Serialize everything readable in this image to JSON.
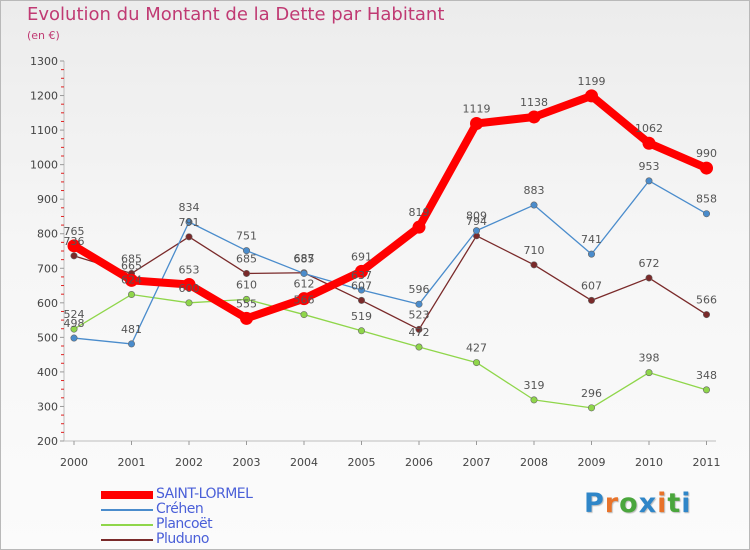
{
  "header": {
    "title": "Evolution du Montant de la Dette par Habitant",
    "unit": "(en €)"
  },
  "brand": {
    "logo_text": "Proxiti",
    "letter_colors": [
      "#2f86c8",
      "#e8732a",
      "#4aa63c",
      "#2f86c8",
      "#e8732a",
      "#4aa63c",
      "#2f86c8"
    ]
  },
  "chart_data": {
    "type": "line",
    "title": "Evolution du Montant de la Dette par Habitant",
    "subtitle": "(en €)",
    "xlabel": "",
    "ylabel": "",
    "x": [
      "2000",
      "2001",
      "2002",
      "2003",
      "2004",
      "2005",
      "2006",
      "2007",
      "2008",
      "2009",
      "2010",
      "2011"
    ],
    "ylim": [
      200,
      1300
    ],
    "yticks": [
      200,
      300,
      400,
      500,
      600,
      700,
      800,
      900,
      1000,
      1100,
      1200,
      1300
    ],
    "grid": false,
    "legend": "bottom-left",
    "series": [
      {
        "name": "SAINT-LORMEL",
        "color": "#ff0000",
        "values": [
          765,
          665,
          653,
          555,
          612,
          691,
          819,
          1119,
          1138,
          1199,
          1062,
          990
        ]
      },
      {
        "name": "Créhen",
        "color": "#4a8ccc",
        "values": [
          498,
          481,
          834,
          751,
          685,
          637,
          596,
          809,
          883,
          741,
          953,
          858
        ]
      },
      {
        "name": "Plancoët",
        "color": "#8fd64a",
        "values": [
          524,
          624,
          600,
          610,
          566,
          519,
          472,
          427,
          319,
          296,
          398,
          348
        ]
      },
      {
        "name": "Pluduno",
        "color": "#7a2a2a",
        "values": [
          736,
          685,
          791,
          685,
          687,
          607,
          523,
          794,
          710,
          607,
          672,
          566
        ]
      }
    ]
  }
}
